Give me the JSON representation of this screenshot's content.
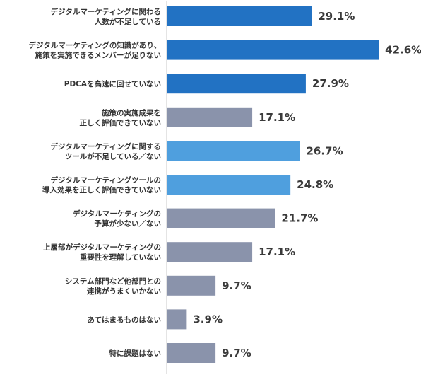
{
  "chart_data": {
    "type": "bar",
    "orientation": "horizontal",
    "xlim": [
      0,
      45
    ],
    "categories": [
      [
        "デジタルマーケティングに関わる",
        "人数が不足している"
      ],
      [
        "デジタルマーケティングの知識があり、",
        "施策を実施できるメンバーが足りない"
      ],
      [
        "PDCAを高速に回せていない"
      ],
      [
        "施策の実施成果を",
        "正しく評価できていない"
      ],
      [
        "デジタルマーケティングに関する",
        "ツールが不足している／ない"
      ],
      [
        "デジタルマーケティングツールの",
        "導入効果を正しく評価できていない"
      ],
      [
        "デジタルマーケティングの",
        "予算が少ない／ない"
      ],
      [
        "上層部がデジタルマーケティングの",
        "重要性を理解していない"
      ],
      [
        "システム部門など他部門との",
        "連携がうまくいかない"
      ],
      [
        "あてはまるものはない"
      ],
      [
        "特に課題はない"
      ]
    ],
    "values": [
      29.1,
      42.6,
      27.9,
      17.1,
      26.7,
      24.8,
      21.7,
      17.1,
      9.7,
      3.9,
      9.7
    ],
    "value_labels": [
      "29.1%",
      "42.6%",
      "27.9%",
      "17.1%",
      "26.7%",
      "24.8%",
      "21.7%",
      "17.1%",
      "9.7%",
      "3.9%",
      "9.7%"
    ],
    "bar_colors": [
      "#2272c3",
      "#2272c3",
      "#2272c3",
      "#8a93ab",
      "#4f9fde",
      "#4f9fde",
      "#8a93ab",
      "#8a93ab",
      "#8a93ab",
      "#8a93ab",
      "#8a93ab"
    ],
    "axis_line_color": "#c9c9c9",
    "grid": false,
    "legend": false
  }
}
